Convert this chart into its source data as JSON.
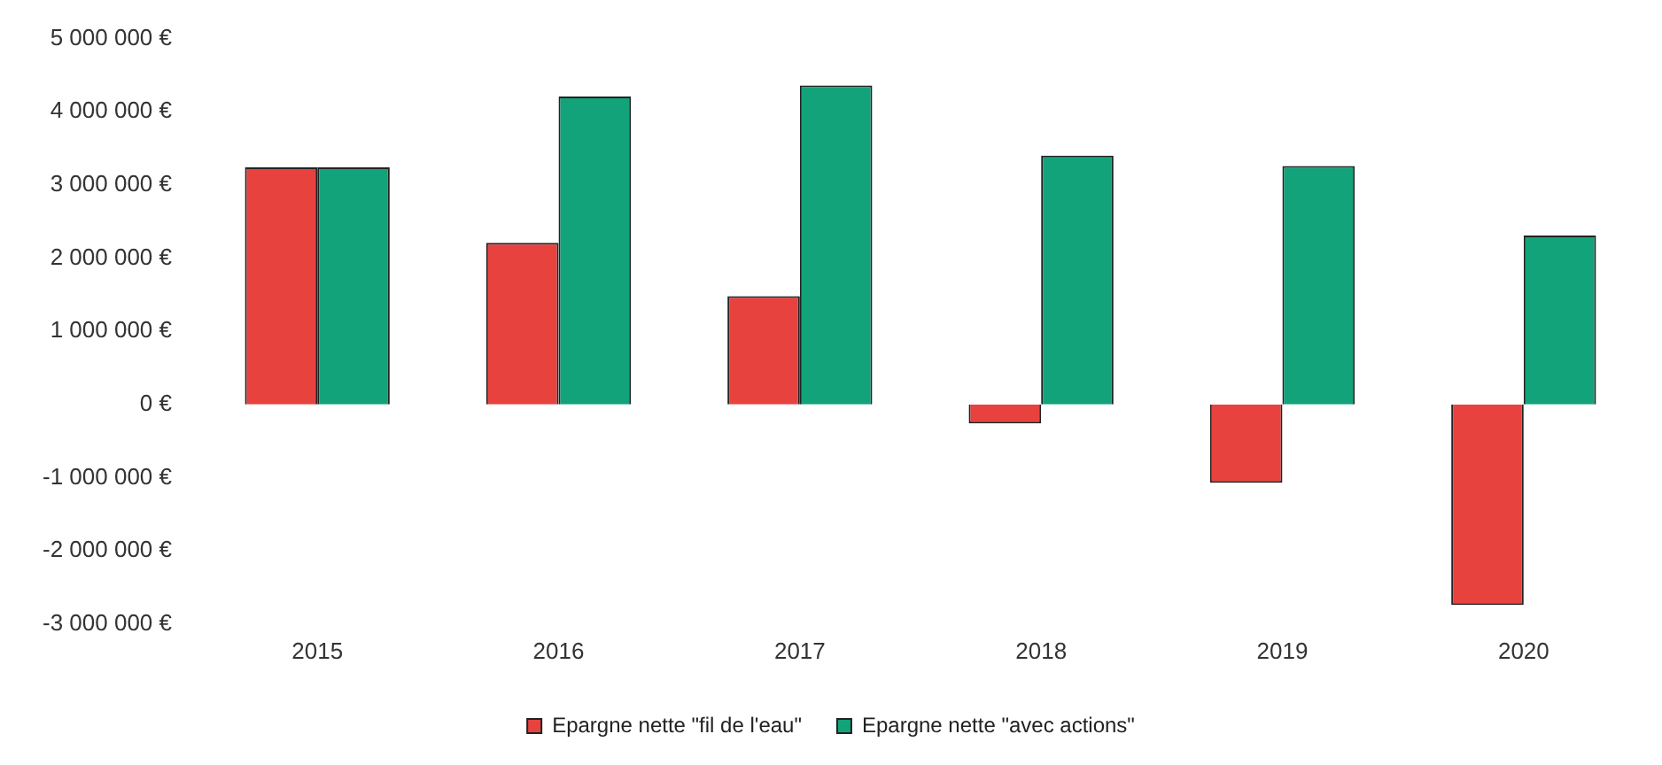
{
  "chart_data": {
    "type": "bar",
    "categories": [
      "2015",
      "2016",
      "2017",
      "2018",
      "2019",
      "2020"
    ],
    "series": [
      {
        "name": "Epargne nette \"fil de l'eau\"",
        "color": "#e8423f",
        "values": [
          3240000,
          2210000,
          1480000,
          -260000,
          -1070000,
          -2740000
        ]
      },
      {
        "name": "Epargne nette \"avec actions\"",
        "color": "#13a37b",
        "values": [
          3240000,
          4210000,
          4360000,
          3400000,
          3260000,
          2310000
        ]
      }
    ],
    "ylim": [
      -3000000,
      5000000
    ],
    "yticks": [
      {
        "value": 5000000,
        "label": "5 000 000 €"
      },
      {
        "value": 4000000,
        "label": "4 000 000 €"
      },
      {
        "value": 3000000,
        "label": "3 000 000 €"
      },
      {
        "value": 2000000,
        "label": "2 000 000 €"
      },
      {
        "value": 1000000,
        "label": "1 000 000 €"
      },
      {
        "value": 0,
        "label": "0 €"
      },
      {
        "value": -1000000,
        "label": "-1 000 000 €"
      },
      {
        "value": -2000000,
        "label": "-2 000 000 €"
      },
      {
        "value": -3000000,
        "label": "-3 000 000 €"
      }
    ],
    "grid": false,
    "legend": "bottom"
  }
}
